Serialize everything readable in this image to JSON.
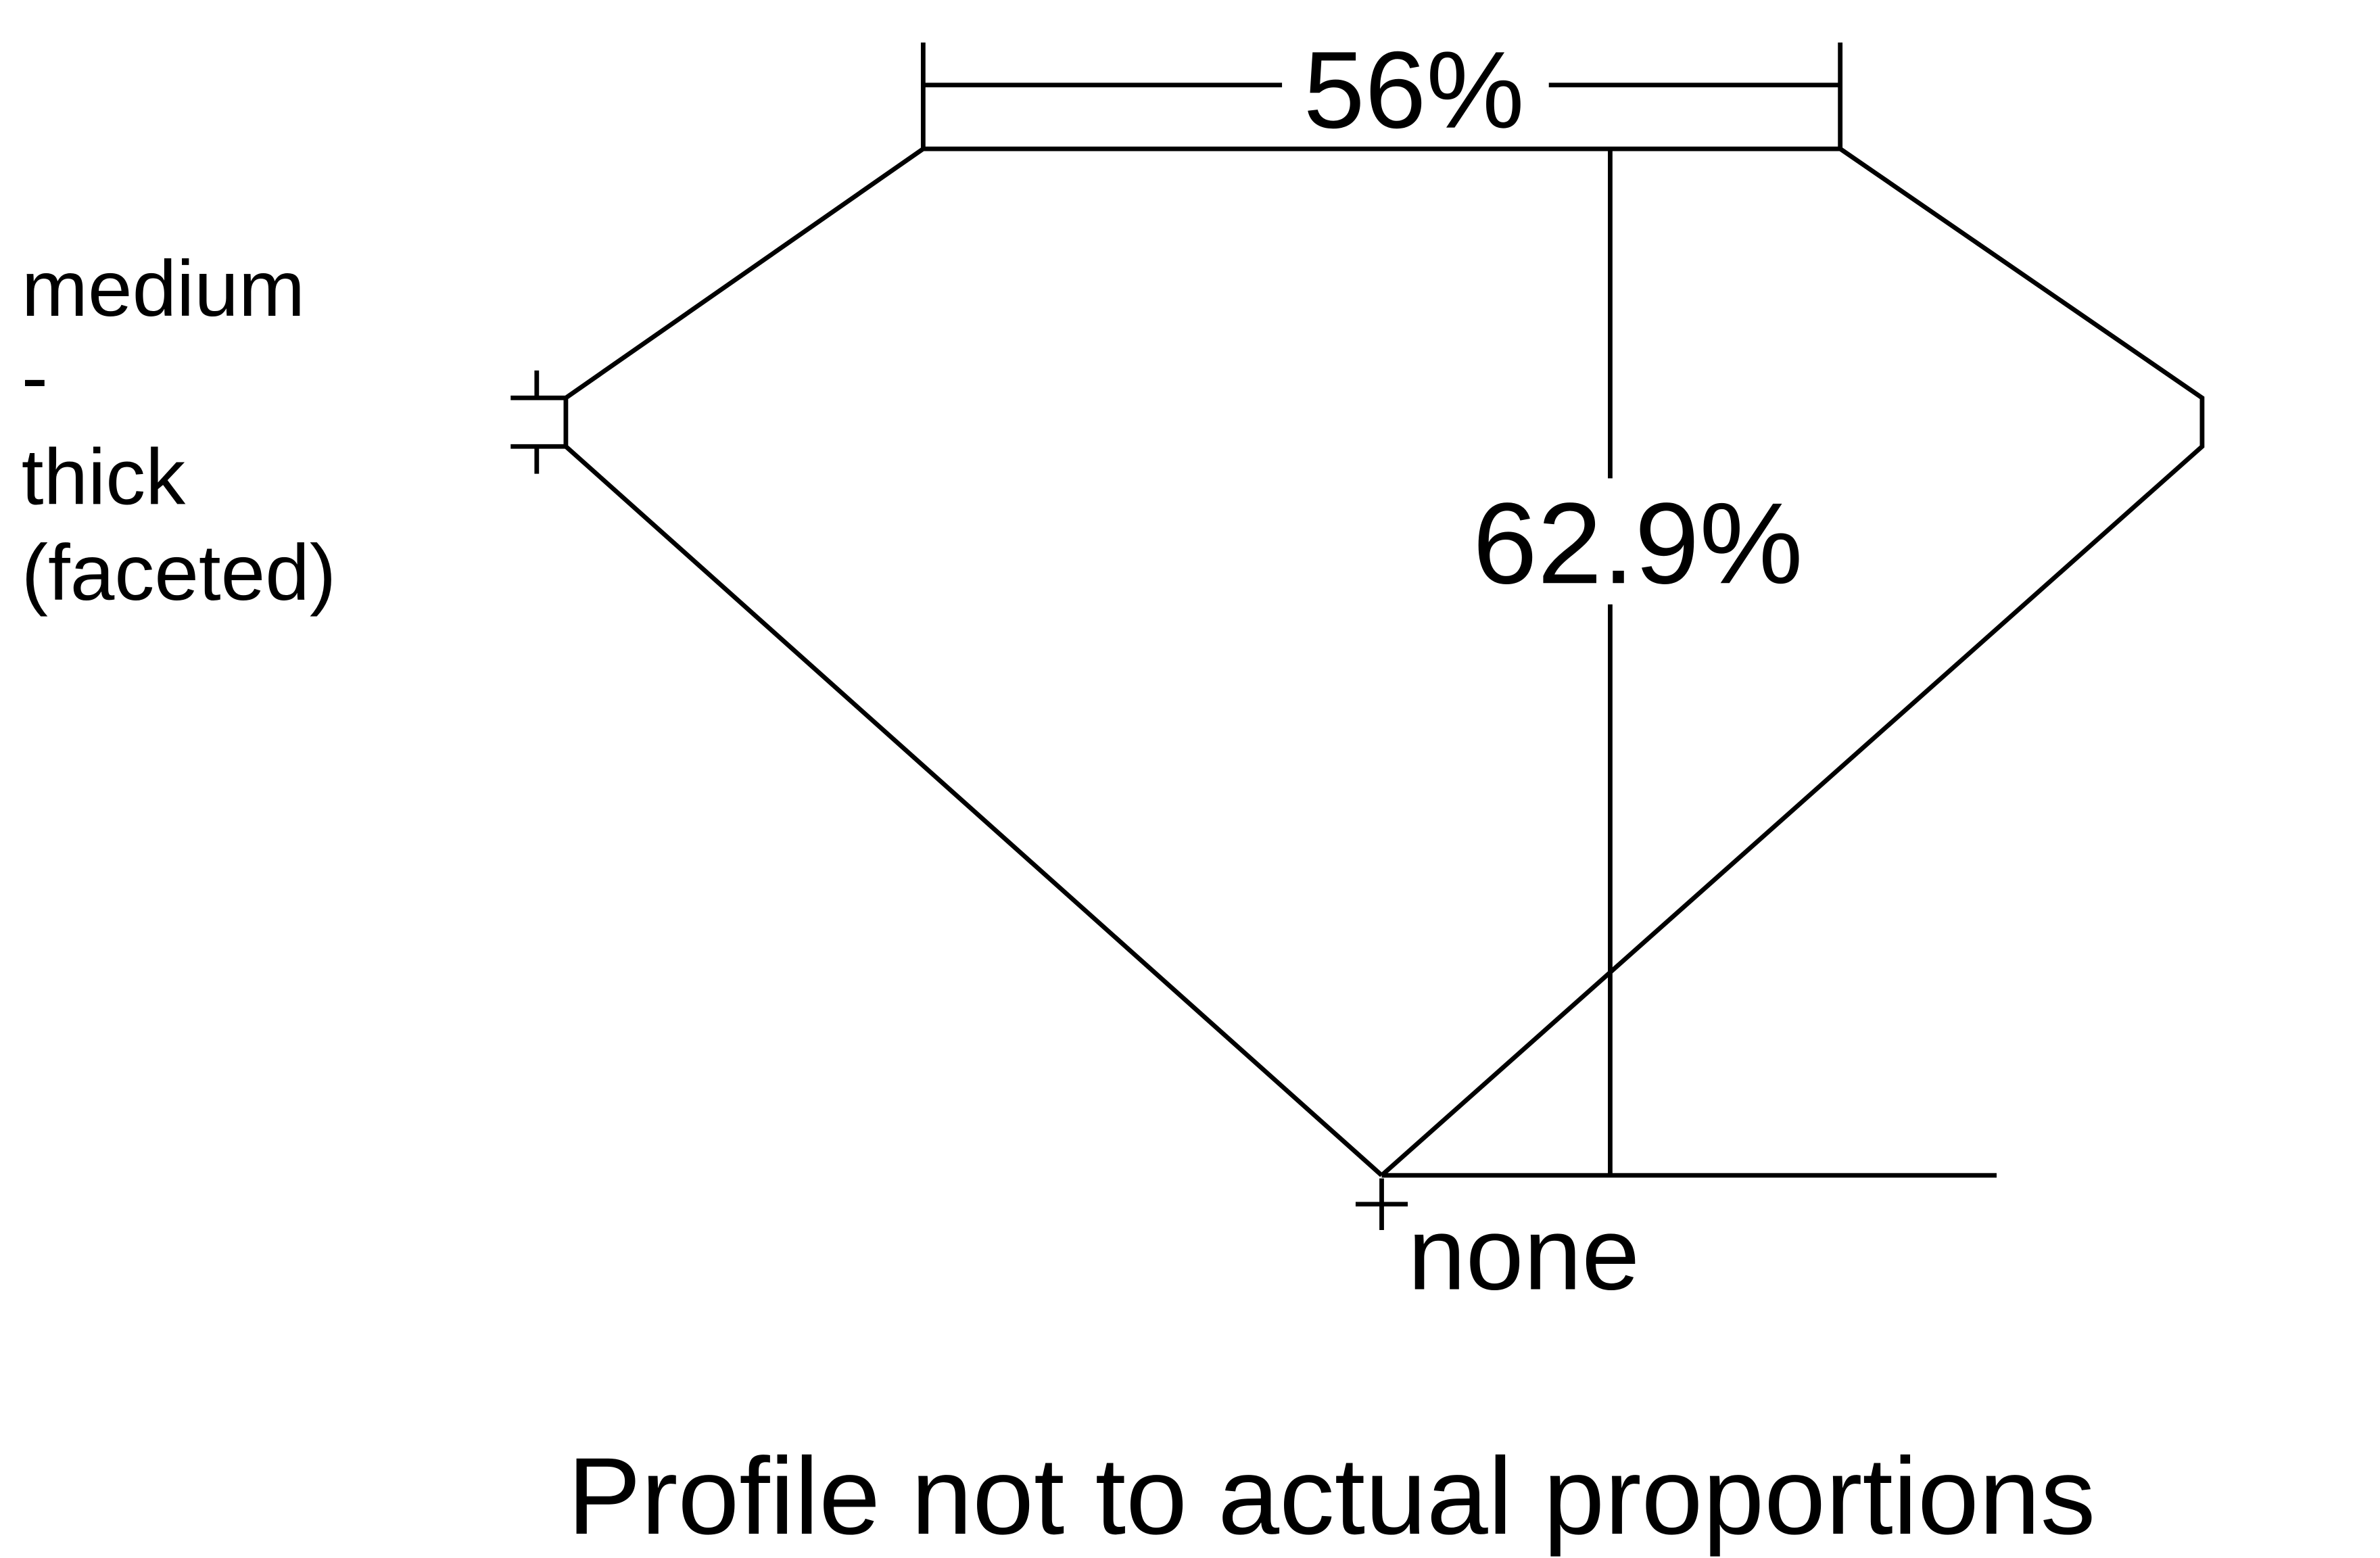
{
  "diagram": {
    "table_percent": "56%",
    "depth_percent": "62.9%",
    "girdle_label_lines": [
      "medium",
      "-",
      "thick",
      "(faceted)"
    ],
    "culet_label": "none",
    "footer_note": "Profile not to actual proportions",
    "colors": {
      "line": "#000000",
      "background": "#ffffff"
    }
  }
}
